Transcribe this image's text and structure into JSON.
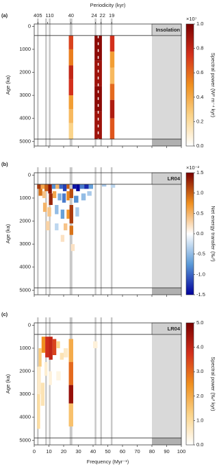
{
  "chart_data": [
    {
      "type": "heatmap",
      "panel_label": "(a)",
      "tag": "Insolation",
      "top_axis_label": "Periodicity (kyr)",
      "top_ticks": [
        {
          "value": 2.47,
          "label": "405"
        },
        {
          "value": 9.09,
          "label": "110"
        },
        {
          "value": 25,
          "label": "40"
        },
        {
          "value": 41.67,
          "label": "24"
        },
        {
          "value": 45.45,
          "label": "22"
        },
        {
          "value": 52.63,
          "label": "19"
        }
      ],
      "band_lines": [
        2.47,
        8.06,
        10.53,
        25,
        41.67,
        45.45,
        52.63
      ],
      "boundary_ages": [
        400,
        4900
      ],
      "shaded_freq": [
        80,
        100
      ],
      "xlim": [
        0,
        100
      ],
      "xticks": [
        0,
        10,
        20,
        30,
        40,
        50,
        60,
        70,
        80,
        90,
        100
      ],
      "show_x_tick_labels": false,
      "ylim": [
        -100,
        5200
      ],
      "y_inverted": true,
      "yticks": [
        0,
        1000,
        2000,
        3000,
        4000,
        5000
      ],
      "y_label": "Age (ka)",
      "colorbar": {
        "label": "Spectral power (W² m⁻⁴ kyr)",
        "exponent": "×10⁷",
        "lim": [
          0,
          1
        ],
        "ticks": [
          {
            "value": 0,
            "label": "0.0"
          },
          0.2,
          0.4,
          0.6,
          0.8,
          {
            "value": 1,
            "label": "1.0"
          }
        ],
        "colormap": [
          "#ffffff",
          "#fbd48a",
          "#f0901f",
          "#d3301c",
          "#7a0000"
        ]
      },
      "cells": [
        [
          23.5,
          26.5,
          400,
          1000,
          0.7
        ],
        [
          23.5,
          26.5,
          1000,
          1700,
          0.55
        ],
        [
          23.5,
          26.5,
          1700,
          2300,
          0.8
        ],
        [
          23.5,
          26.5,
          2300,
          3000,
          0.75
        ],
        [
          23.5,
          26.5,
          3000,
          3600,
          0.45
        ],
        [
          23.5,
          26.5,
          3600,
          4200,
          0.35
        ],
        [
          23.5,
          26.5,
          4200,
          4900,
          0.25
        ],
        [
          41,
          46,
          400,
          1500,
          0.95
        ],
        [
          41,
          46,
          1500,
          2600,
          0.9
        ],
        [
          41,
          46,
          2600,
          3700,
          0.95
        ],
        [
          41,
          46,
          3700,
          4900,
          0.9
        ],
        [
          51.5,
          54.5,
          400,
          1100,
          0.75
        ],
        [
          51.5,
          54.5,
          1100,
          1800,
          0.45
        ],
        [
          51.5,
          54.5,
          1800,
          2500,
          0.35
        ],
        [
          51.5,
          54.5,
          2500,
          3200,
          0.6
        ],
        [
          51.5,
          54.5,
          3200,
          4000,
          0.85
        ],
        [
          51.5,
          54.5,
          4000,
          4900,
          0.65
        ]
      ]
    },
    {
      "type": "heatmap",
      "panel_label": "(b)",
      "tag": "LR04",
      "band_lines": [
        2.47,
        8.06,
        10.53,
        25,
        41.67,
        45.45,
        52.63
      ],
      "boundary_ages": [
        400,
        4900
      ],
      "shaded_freq": [
        80,
        100
      ],
      "xlim": [
        0,
        100
      ],
      "xticks": [
        0,
        10,
        20,
        30,
        40,
        50,
        60,
        70,
        80,
        90,
        100
      ],
      "show_x_tick_labels": false,
      "ylim": [
        -100,
        5200
      ],
      "y_inverted": true,
      "yticks": [
        0,
        1000,
        2000,
        3000,
        4000,
        5000
      ],
      "y_label": "Age (ka)",
      "colorbar": {
        "label": "Net energy transfer (‰²)",
        "exponent": "×10⁻²",
        "lim": [
          -1.5,
          1.5
        ],
        "ticks": [
          1.5,
          {
            "value": 1,
            "label": "1.0"
          },
          0.5,
          {
            "value": 0,
            "label": "0.0"
          },
          -0.5,
          {
            "value": -1,
            "label": "-1.0"
          },
          -1.5
        ],
        "colormap": [
          "#00009c",
          "#5b9ad8",
          "#ffffff",
          "#f0901f",
          "#7a0000"
        ]
      },
      "cells": [
        [
          2,
          4.5,
          400,
          600,
          1.2
        ],
        [
          4.5,
          7,
          400,
          600,
          0.6
        ],
        [
          7,
          9.5,
          400,
          700,
          1.0
        ],
        [
          9.5,
          12,
          400,
          800,
          1.4
        ],
        [
          12,
          14.5,
          400,
          600,
          -0.8
        ],
        [
          14.5,
          17,
          400,
          600,
          0.5
        ],
        [
          17,
          19.5,
          400,
          600,
          -1.0
        ],
        [
          19.5,
          22,
          400,
          700,
          -1.2
        ],
        [
          22,
          24,
          400,
          600,
          1.0
        ],
        [
          26,
          28.5,
          400,
          600,
          -1.4
        ],
        [
          28.5,
          31,
          400,
          700,
          -1.5
        ],
        [
          31,
          34,
          400,
          600,
          -0.9
        ],
        [
          34,
          37,
          400,
          600,
          -1.3
        ],
        [
          37,
          40,
          400,
          600,
          -0.7
        ],
        [
          46,
          49,
          400,
          500,
          -0.4
        ],
        [
          52,
          55,
          400,
          550,
          -0.3
        ],
        [
          3,
          5.5,
          600,
          900,
          0.9
        ],
        [
          5.5,
          8,
          700,
          1000,
          0.4
        ],
        [
          10,
          12.5,
          800,
          1300,
          1.3
        ],
        [
          12.5,
          15,
          700,
          1000,
          0.6
        ],
        [
          16,
          18.5,
          800,
          1100,
          -0.6
        ],
        [
          19,
          21.5,
          800,
          1200,
          -0.9
        ],
        [
          22,
          24,
          700,
          1100,
          0.8
        ],
        [
          24,
          26.5,
          600,
          1000,
          1.1
        ],
        [
          27,
          30,
          900,
          1200,
          -0.8
        ],
        [
          32,
          35,
          800,
          1100,
          -0.5
        ],
        [
          36,
          39,
          700,
          900,
          -0.4
        ],
        [
          6,
          8.5,
          1200,
          1600,
          0.5
        ],
        [
          9,
          11.5,
          1400,
          1800,
          0.4
        ],
        [
          14,
          16.5,
          1300,
          1700,
          -0.5
        ],
        [
          18,
          20.5,
          1500,
          1900,
          -0.7
        ],
        [
          22,
          24,
          1500,
          1900,
          0.7
        ],
        [
          24,
          26.5,
          1300,
          2100,
          1.2
        ],
        [
          28,
          30.5,
          1400,
          1800,
          -0.4
        ],
        [
          8,
          10.5,
          2000,
          2400,
          0.3
        ],
        [
          14,
          16.5,
          2100,
          2400,
          -0.3
        ],
        [
          20,
          22.5,
          2100,
          2400,
          0.4
        ],
        [
          24,
          26.5,
          2200,
          2600,
          0.9
        ],
        [
          18,
          20.5,
          2600,
          2900,
          0.2
        ],
        [
          25,
          27.5,
          3000,
          3300,
          0.2
        ]
      ]
    },
    {
      "type": "heatmap",
      "panel_label": "(c)",
      "tag": "LR04",
      "band_lines": [
        2.47,
        8.06,
        10.53,
        25,
        41.67,
        45.45,
        52.63
      ],
      "boundary_ages": [
        400,
        4900
      ],
      "shaded_freq": [
        80,
        100
      ],
      "xlim": [
        0,
        100
      ],
      "xticks": [
        0,
        10,
        20,
        30,
        40,
        50,
        60,
        70,
        80,
        90,
        100
      ],
      "show_x_tick_labels": true,
      "x_label": "Frequency (Myr⁻¹)",
      "ylim": [
        -100,
        5200
      ],
      "y_inverted": true,
      "yticks": [
        0,
        1000,
        2000,
        3000,
        4000,
        5000
      ],
      "y_label": "Age (ka)",
      "colorbar": {
        "label": "Spectral power (‰² kyr)",
        "lim": [
          0,
          5
        ],
        "ticks": [
          {
            "value": 0,
            "label": "0.0"
          },
          {
            "value": 1,
            "label": "1.0"
          },
          {
            "value": 2,
            "label": "2.0"
          },
          {
            "value": 3,
            "label": "3.0"
          },
          {
            "value": 4,
            "label": "4.0"
          },
          {
            "value": 5,
            "label": "5.0"
          }
        ],
        "colormap": [
          "#ffffff",
          "#fbd48a",
          "#f0901f",
          "#d3301c",
          "#7a0000"
        ]
      },
      "cells": [
        [
          5,
          7.5,
          500,
          1200,
          2.5
        ],
        [
          7.5,
          10,
          500,
          1400,
          3.8
        ],
        [
          10,
          12.5,
          500,
          1500,
          4.0
        ],
        [
          12.5,
          15,
          600,
          1300,
          3.5
        ],
        [
          15,
          17.5,
          700,
          1000,
          1.2
        ],
        [
          3,
          5,
          1000,
          1800,
          1.4
        ],
        [
          17.5,
          20,
          1200,
          1500,
          0.8
        ],
        [
          20,
          23,
          1000,
          1400,
          0.6
        ],
        [
          23.5,
          26.5,
          600,
          1600,
          2.0
        ],
        [
          23.5,
          26.5,
          1600,
          2600,
          3.0
        ],
        [
          23.5,
          26.5,
          2600,
          3400,
          4.6
        ],
        [
          23.5,
          26.5,
          3400,
          4400,
          1.6
        ],
        [
          2,
          4.5,
          1800,
          3000,
          0.6
        ],
        [
          4.5,
          7,
          2500,
          3500,
          0.8
        ],
        [
          2,
          4,
          3000,
          4500,
          1.0
        ],
        [
          7,
          9,
          1600,
          2200,
          0.5
        ],
        [
          10,
          12,
          2000,
          2600,
          0.4
        ],
        [
          15,
          18,
          2000,
          2400,
          0.3
        ],
        [
          40,
          43,
          700,
          1000,
          0.4
        ]
      ]
    }
  ]
}
